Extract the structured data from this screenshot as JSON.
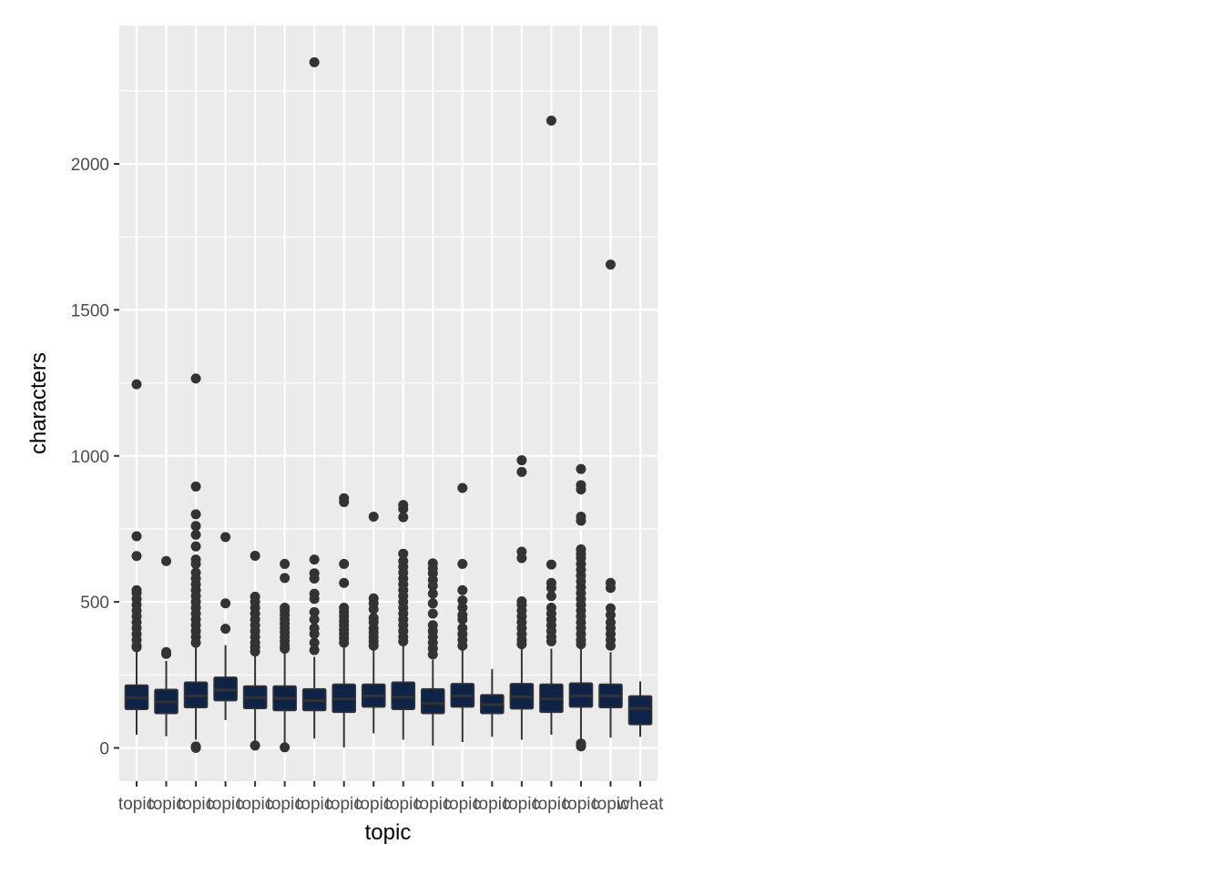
{
  "chart_data": {
    "type": "boxplot",
    "xlabel": "topic",
    "ylabel": "characters",
    "ylim": [
      -110,
      2470
    ],
    "y_ticks": [
      0,
      500,
      1000,
      1500,
      2000
    ],
    "grid": true,
    "legend": "none",
    "colors": {
      "panel_bg": "#ebebeb",
      "grid": "#ffffff",
      "box_fill": "#0f2347",
      "box_line": "#333333",
      "outlier": "#333333"
    },
    "categories": [
      {
        "label": "topic",
        "min": 45,
        "q1": 132,
        "median": 172,
        "q3": 215,
        "max": 338,
        "outliers": [
          1245,
          725,
          657,
          540,
          530,
          510,
          490,
          470,
          450,
          430,
          410,
          390,
          370,
          350,
          345
        ]
      },
      {
        "label": "topic",
        "min": 40,
        "q1": 118,
        "median": 158,
        "q3": 200,
        "max": 298,
        "outliers": [
          640,
          328,
          322
        ]
      },
      {
        "label": "topic",
        "min": 28,
        "q1": 138,
        "median": 178,
        "q3": 225,
        "max": 348,
        "outliers": [
          1265,
          895,
          800,
          760,
          730,
          690,
          645,
          630,
          600,
          580,
          560,
          540,
          520,
          500,
          480,
          460,
          440,
          420,
          400,
          380,
          360,
          0,
          2,
          5
        ]
      },
      {
        "label": "topic",
        "min": 95,
        "q1": 162,
        "median": 198,
        "q3": 242,
        "max": 352,
        "outliers": [
          722,
          495,
          408
        ]
      },
      {
        "label": "topic",
        "min": 25,
        "q1": 135,
        "median": 172,
        "q3": 212,
        "max": 328,
        "outliers": [
          658,
          518,
          500,
          480,
          460,
          440,
          420,
          400,
          380,
          360,
          345,
          330,
          8
        ]
      },
      {
        "label": "topic",
        "min": 12,
        "q1": 128,
        "median": 170,
        "q3": 212,
        "max": 338,
        "outliers": [
          630,
          582,
          480,
          470,
          455,
          440,
          425,
          410,
          395,
          380,
          365,
          350,
          340,
          2
        ]
      },
      {
        "label": "topic",
        "min": 32,
        "q1": 128,
        "median": 162,
        "q3": 202,
        "max": 312,
        "outliers": [
          2348,
          645,
          598,
          580,
          528,
          510,
          465,
          440,
          410,
          390,
          360,
          335
        ]
      },
      {
        "label": "topic",
        "min": 2,
        "q1": 122,
        "median": 168,
        "q3": 218,
        "max": 345,
        "outliers": [
          855,
          842,
          630,
          565,
          480,
          465,
          450,
          435,
          420,
          405,
          390,
          375,
          360
        ]
      },
      {
        "label": "topic",
        "min": 50,
        "q1": 140,
        "median": 178,
        "q3": 218,
        "max": 340,
        "outliers": [
          792,
          512,
          495,
          475,
          445,
          430,
          410,
          395,
          380,
          365,
          350
        ]
      },
      {
        "label": "topic",
        "min": 28,
        "q1": 132,
        "median": 174,
        "q3": 225,
        "max": 355,
        "outliers": [
          832,
          818,
          790,
          665,
          640,
          620,
          600,
          580,
          560,
          540,
          520,
          500,
          480,
          460,
          440,
          420,
          400,
          380,
          365
        ]
      },
      {
        "label": "topic",
        "min": 8,
        "q1": 118,
        "median": 152,
        "q3": 202,
        "max": 302,
        "outliers": [
          632,
          615,
          598,
          575,
          555,
          528,
          495,
          460,
          420,
          400,
          380,
          360,
          340,
          320
        ]
      },
      {
        "label": "topic",
        "min": 20,
        "q1": 140,
        "median": 178,
        "q3": 220,
        "max": 340,
        "outliers": [
          890,
          630,
          540,
          505,
          480,
          455,
          440,
          410,
          390,
          370,
          350
        ]
      },
      {
        "label": "topic",
        "min": 38,
        "q1": 118,
        "median": 148,
        "q3": 182,
        "max": 270,
        "outliers": []
      },
      {
        "label": "topic",
        "min": 28,
        "q1": 134,
        "median": 175,
        "q3": 220,
        "max": 340,
        "outliers": [
          985,
          945,
          672,
          650,
          502,
          490,
          470,
          450,
          430,
          410,
          390,
          370,
          355
        ]
      },
      {
        "label": "topic",
        "min": 45,
        "q1": 122,
        "median": 168,
        "q3": 218,
        "max": 340,
        "outliers": [
          2148,
          628,
          565,
          548,
          520,
          480,
          460,
          440,
          420,
          400,
          380,
          365
        ]
      },
      {
        "label": "topic",
        "min": 30,
        "q1": 140,
        "median": 178,
        "q3": 222,
        "max": 345,
        "outliers": [
          955,
          900,
          885,
          792,
          778,
          680,
          665,
          650,
          630,
          610,
          590,
          570,
          550,
          530,
          510,
          490,
          470,
          450,
          430,
          410,
          390,
          370,
          355,
          5,
          10,
          15
        ]
      },
      {
        "label": "topic",
        "min": 35,
        "q1": 138,
        "median": 178,
        "q3": 218,
        "max": 328,
        "outliers": [
          1655,
          565,
          548,
          478,
          455,
          430,
          410,
          390,
          370,
          350
        ]
      },
      {
        "label": "wheat",
        "min": 38,
        "q1": 80,
        "median": 135,
        "q3": 178,
        "max": 228,
        "outliers": []
      }
    ]
  }
}
